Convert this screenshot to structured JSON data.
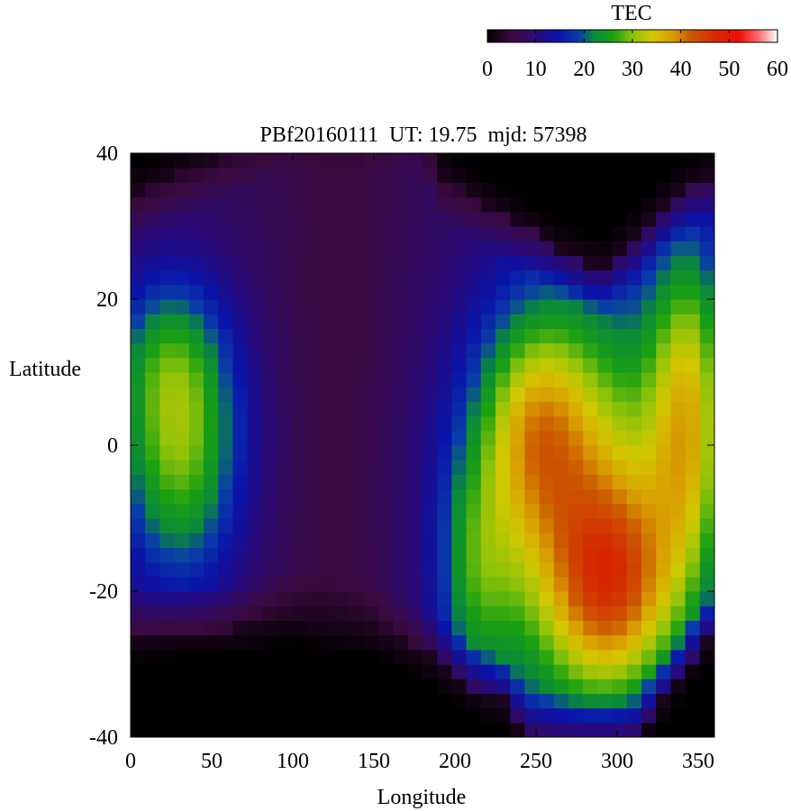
{
  "chart_data": {
    "type": "heatmap",
    "title": "PBf20160111  UT: 19.75  mjd: 57398",
    "xlabel": "Longitude",
    "ylabel": "Latitude",
    "xlim": [
      0,
      360
    ],
    "ylim": [
      -40,
      40
    ],
    "xticks": [
      0,
      50,
      100,
      150,
      200,
      250,
      300,
      350
    ],
    "yticks": [
      -40,
      -20,
      0,
      20,
      40
    ],
    "grid_lon_step": 9,
    "grid_lat_step": 2,
    "colorbar": {
      "label": "TEC",
      "range": [
        0,
        60
      ],
      "ticks": [
        0,
        10,
        20,
        30,
        40,
        50,
        60
      ],
      "placement": "top-right",
      "stops": [
        {
          "v": 0,
          "color": "#000000"
        },
        {
          "v": 5,
          "color": "#3a0a3e"
        },
        {
          "v": 10,
          "color": "#2a0a78"
        },
        {
          "v": 15,
          "color": "#0a14aa"
        },
        {
          "v": 19,
          "color": "#0a3ea8"
        },
        {
          "v": 22,
          "color": "#0a8a3a"
        },
        {
          "v": 26,
          "color": "#1aa012"
        },
        {
          "v": 30,
          "color": "#8cc20a"
        },
        {
          "v": 34,
          "color": "#d2c800"
        },
        {
          "v": 38,
          "color": "#d8a000"
        },
        {
          "v": 42,
          "color": "#cc5a00"
        },
        {
          "v": 47,
          "color": "#d42a00"
        },
        {
          "v": 52,
          "color": "#ee0e08"
        },
        {
          "v": 56,
          "color": "#ff6a6a"
        },
        {
          "v": 60,
          "color": "#ffffff"
        }
      ]
    },
    "features": {
      "base_tec": 7,
      "north_dark_edge": [
        [
          0,
          34
        ],
        [
          100,
          44
        ],
        [
          180,
          44
        ],
        [
          190,
          37
        ],
        [
          210,
          34
        ],
        [
          240,
          30
        ],
        [
          270,
          26
        ],
        [
          290,
          24
        ],
        [
          310,
          28
        ],
        [
          330,
          33
        ],
        [
          350,
          36
        ],
        [
          360,
          37
        ]
      ],
      "south_dark_edge": [
        [
          0,
          -26
        ],
        [
          30,
          -25
        ],
        [
          60,
          -25
        ],
        [
          100,
          -23
        ],
        [
          150,
          -25
        ],
        [
          180,
          -28
        ],
        [
          210,
          -33
        ],
        [
          230,
          -35
        ],
        [
          245,
          -40
        ],
        [
          310,
          -40
        ],
        [
          330,
          -34
        ],
        [
          350,
          -28
        ],
        [
          360,
          -26
        ]
      ],
      "blobs": [
        {
          "lon": 30,
          "lat": 0,
          "amp": 22,
          "sig_lon": 28,
          "sig_lat": 14
        },
        {
          "lon": 20,
          "lat": 13,
          "amp": 7,
          "sig_lon": 25,
          "sig_lat": 8
        },
        {
          "lon": 275,
          "lat": -8,
          "amp": 28,
          "sig_lon": 48,
          "sig_lat": 22
        },
        {
          "lon": 300,
          "lat": -20,
          "amp": 18,
          "sig_lon": 26,
          "sig_lat": 10
        },
        {
          "lon": 248,
          "lat": 3,
          "amp": 12,
          "sig_lon": 22,
          "sig_lat": 10
        },
        {
          "lon": 345,
          "lat": 5,
          "amp": 22,
          "sig_lon": 18,
          "sig_lat": 18
        },
        {
          "lon": 212,
          "lat": -18,
          "amp": 10,
          "sig_lon": 16,
          "sig_lat": 12
        }
      ]
    }
  }
}
